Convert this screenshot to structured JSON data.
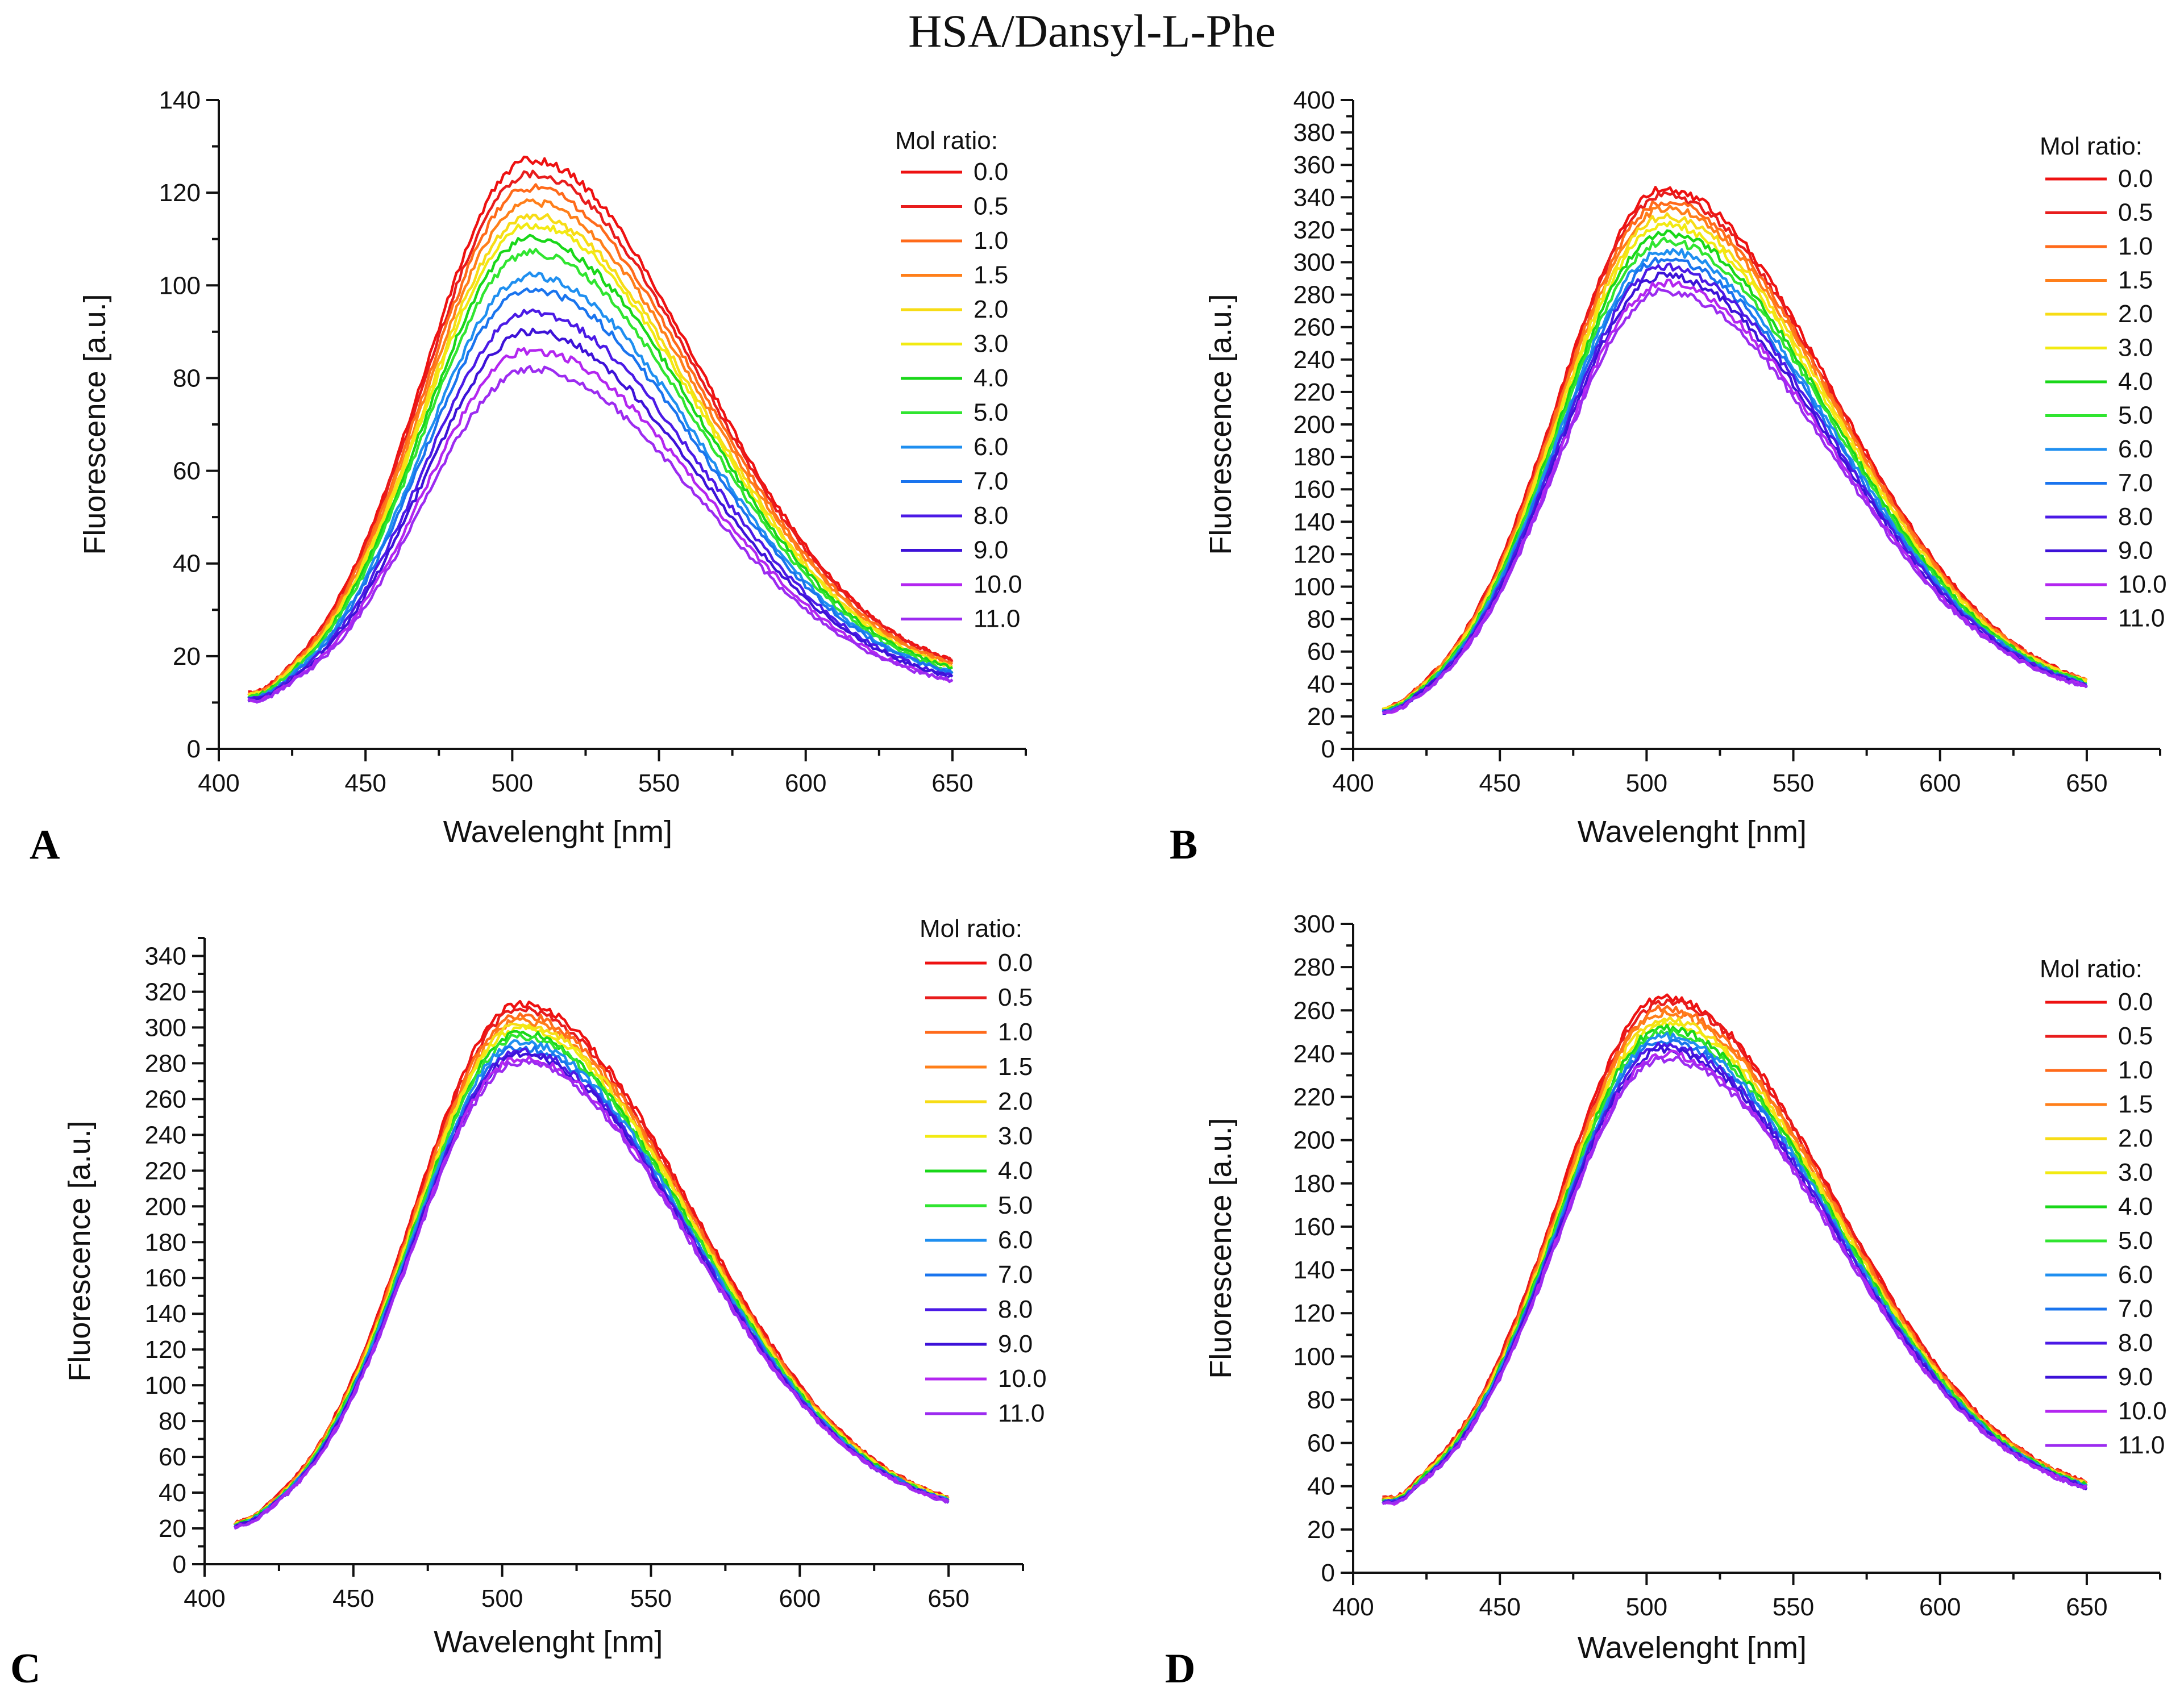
{
  "figure_title": "HSA/Dansyl-L-Phe",
  "legend_title": "Mol ratio:",
  "series_names": [
    "0.0",
    "0.5",
    "1.0",
    "1.5",
    "2.0",
    "3.0",
    "4.0",
    "5.0",
    "6.0",
    "7.0",
    "8.0",
    "9.0",
    "10.0",
    "11.0"
  ],
  "series_colors": [
    "#ee1111",
    "#e81d1d",
    "#ff6a1a",
    "#ff7f1a",
    "#f7dc16",
    "#f2ea12",
    "#19d719",
    "#30e530",
    "#1f8ff0",
    "#1a74ee",
    "#4b1ae6",
    "#3d12d8",
    "#b326f0",
    "#9c2bf0"
  ],
  "chart_data": [
    {
      "panel": "A",
      "type": "line",
      "xlabel": "Wavelenght [nm]",
      "ylabel": "Fluorescence [a.u.]",
      "xlim": [
        400,
        675
      ],
      "ylim": [
        0,
        140
      ],
      "xticks": [
        400,
        450,
        500,
        550,
        600,
        650
      ],
      "yticks": [
        0,
        20,
        40,
        60,
        80,
        100,
        120,
        140
      ],
      "x_range": [
        410,
        650
      ],
      "series": [
        {
          "name": "0.0",
          "peak": 126,
          "start": 9,
          "end": 14
        },
        {
          "name": "0.5",
          "peak": 123,
          "start": 9,
          "end": 14
        },
        {
          "name": "1.0",
          "peak": 120,
          "start": 9,
          "end": 13.5
        },
        {
          "name": "1.5",
          "peak": 117,
          "start": 9,
          "end": 13.5
        },
        {
          "name": "2.0",
          "peak": 114,
          "start": 9,
          "end": 13
        },
        {
          "name": "3.0",
          "peak": 112,
          "start": 8.8,
          "end": 13
        },
        {
          "name": "4.0",
          "peak": 109,
          "start": 8.8,
          "end": 13
        },
        {
          "name": "5.0",
          "peak": 106,
          "start": 8.8,
          "end": 12.5
        },
        {
          "name": "6.0",
          "peak": 101,
          "start": 8.6,
          "end": 12.5
        },
        {
          "name": "7.0",
          "peak": 98,
          "start": 8.6,
          "end": 12.5
        },
        {
          "name": "8.0",
          "peak": 93,
          "start": 8.6,
          "end": 12
        },
        {
          "name": "9.0",
          "peak": 89,
          "start": 8.5,
          "end": 12
        },
        {
          "name": "10.0",
          "peak": 85,
          "start": 8.5,
          "end": 11.5
        },
        {
          "name": "11.0",
          "peak": 81,
          "start": 8.5,
          "end": 11.5
        }
      ]
    },
    {
      "panel": "B",
      "type": "line",
      "xlabel": "Wavelenght [nm]",
      "ylabel": "Fluorescence [a.u.]",
      "xlim": [
        400,
        675
      ],
      "ylim": [
        0,
        400
      ],
      "xticks": [
        400,
        450,
        500,
        550,
        600,
        650
      ],
      "yticks": [
        0,
        20,
        40,
        60,
        80,
        100,
        120,
        140,
        160,
        180,
        200,
        220,
        240,
        260,
        280,
        300,
        320,
        340,
        360,
        380,
        400
      ],
      "x_range": [
        410,
        650
      ],
      "series": [
        {
          "name": "0.0",
          "peak": 343,
          "start": 16,
          "end": 28
        },
        {
          "name": "0.5",
          "peak": 339,
          "start": 16,
          "end": 28
        },
        {
          "name": "1.0",
          "peak": 335,
          "start": 16,
          "end": 28
        },
        {
          "name": "1.5",
          "peak": 331,
          "start": 16,
          "end": 28
        },
        {
          "name": "2.0",
          "peak": 326,
          "start": 15.5,
          "end": 28
        },
        {
          "name": "3.0",
          "peak": 321,
          "start": 15.5,
          "end": 27.5
        },
        {
          "name": "4.0",
          "peak": 316,
          "start": 15.5,
          "end": 27.5
        },
        {
          "name": "5.0",
          "peak": 311,
          "start": 15.5,
          "end": 27.5
        },
        {
          "name": "6.0",
          "peak": 305,
          "start": 15,
          "end": 27
        },
        {
          "name": "7.0",
          "peak": 300,
          "start": 15,
          "end": 27
        },
        {
          "name": "8.0",
          "peak": 295,
          "start": 15,
          "end": 27
        },
        {
          "name": "9.0",
          "peak": 290,
          "start": 15,
          "end": 26.5
        },
        {
          "name": "10.0",
          "peak": 285,
          "start": 14.5,
          "end": 26.5
        },
        {
          "name": "11.0",
          "peak": 280,
          "start": 14.5,
          "end": 26.5
        }
      ]
    },
    {
      "panel": "C",
      "type": "line",
      "xlabel": "Wavelenght [nm]",
      "ylabel": "Fluorescence [a.u.]",
      "xlim": [
        400,
        675
      ],
      "ylim": [
        0,
        350
      ],
      "xticks": [
        400,
        450,
        500,
        550,
        600,
        650
      ],
      "yticks": [
        0,
        20,
        40,
        60,
        80,
        100,
        120,
        140,
        160,
        180,
        200,
        220,
        240,
        260,
        280,
        300,
        320,
        340
      ],
      "x_range": [
        410,
        650
      ],
      "series": [
        {
          "name": "0.0",
          "peak": 311,
          "start": 15,
          "end": 24
        },
        {
          "name": "0.5",
          "peak": 308,
          "start": 15,
          "end": 24
        },
        {
          "name": "1.0",
          "peak": 305,
          "start": 15,
          "end": 24
        },
        {
          "name": "1.5",
          "peak": 302,
          "start": 15,
          "end": 24
        },
        {
          "name": "2.0",
          "peak": 300,
          "start": 14.5,
          "end": 24
        },
        {
          "name": "3.0",
          "peak": 298,
          "start": 14.5,
          "end": 24
        },
        {
          "name": "4.0",
          "peak": 295,
          "start": 14.5,
          "end": 23.5
        },
        {
          "name": "5.0",
          "peak": 293,
          "start": 14.5,
          "end": 23.5
        },
        {
          "name": "6.0",
          "peak": 290,
          "start": 14,
          "end": 23.5
        },
        {
          "name": "7.0",
          "peak": 287,
          "start": 14,
          "end": 23.5
        },
        {
          "name": "8.0",
          "peak": 285,
          "start": 14,
          "end": 23
        },
        {
          "name": "9.0",
          "peak": 283,
          "start": 14,
          "end": 23
        },
        {
          "name": "10.0",
          "peak": 281,
          "start": 13.5,
          "end": 23
        },
        {
          "name": "11.0",
          "peak": 279,
          "start": 13.5,
          "end": 23
        }
      ]
    },
    {
      "panel": "D",
      "type": "line",
      "xlabel": "Wavelenght [nm]",
      "ylabel": "Fluorescence [a.u.]",
      "xlim": [
        400,
        675
      ],
      "ylim": [
        0,
        300
      ],
      "xticks": [
        400,
        450,
        500,
        550,
        600,
        650
      ],
      "yticks": [
        0,
        20,
        40,
        60,
        80,
        100,
        120,
        140,
        160,
        180,
        200,
        220,
        240,
        260,
        280,
        300
      ],
      "x_range": [
        410,
        650
      ],
      "series": [
        {
          "name": "0.0",
          "peak": 263,
          "start": 29,
          "end": 31
        },
        {
          "name": "0.5",
          "peak": 261,
          "start": 29,
          "end": 31
        },
        {
          "name": "1.0",
          "peak": 258,
          "start": 28.5,
          "end": 31
        },
        {
          "name": "1.5",
          "peak": 256,
          "start": 28.5,
          "end": 31
        },
        {
          "name": "2.0",
          "peak": 253,
          "start": 28.5,
          "end": 30.5
        },
        {
          "name": "3.0",
          "peak": 251,
          "start": 28,
          "end": 30.5
        },
        {
          "name": "4.0",
          "peak": 249,
          "start": 28,
          "end": 30.5
        },
        {
          "name": "5.0",
          "peak": 247,
          "start": 28,
          "end": 30.5
        },
        {
          "name": "6.0",
          "peak": 245,
          "start": 27.5,
          "end": 30
        },
        {
          "name": "7.0",
          "peak": 243,
          "start": 27.5,
          "end": 30
        },
        {
          "name": "8.0",
          "peak": 241,
          "start": 27.5,
          "end": 30
        },
        {
          "name": "9.0",
          "peak": 239,
          "start": 27,
          "end": 29.5
        },
        {
          "name": "10.0",
          "peak": 237,
          "start": 27,
          "end": 29.5
        },
        {
          "name": "11.0",
          "peak": 235,
          "start": 27,
          "end": 29.5
        }
      ]
    }
  ]
}
